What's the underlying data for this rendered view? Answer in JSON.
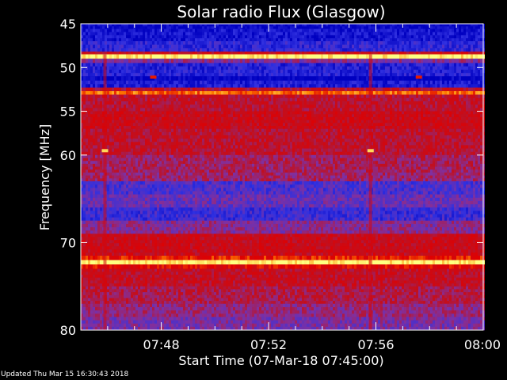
{
  "chart_data": {
    "type": "heatmap",
    "title": "Solar radio Flux (Glasgow)",
    "xlabel": "Start Time (07-Mar-18 07:45:00)",
    "ylabel": "Frequency [MHz]",
    "x_range": [
      "07:45",
      "08:00"
    ],
    "ylim": [
      45,
      80
    ],
    "x_ticks": [
      {
        "label": "07:48",
        "minutes": 3
      },
      {
        "label": "07:52",
        "minutes": 7
      },
      {
        "label": "07:56",
        "minutes": 11
      },
      {
        "label": "08:00",
        "minutes": 15
      }
    ],
    "y_ticks": [
      45,
      50,
      55,
      60,
      70,
      80
    ],
    "colormap": [
      "#0000c0",
      "#3030e0",
      "#8030a0",
      "#c01020",
      "#e00000",
      "#ff8000",
      "#ffff80"
    ],
    "frequency_bands": [
      {
        "f0": 45.0,
        "f1": 45.6,
        "level": 0.02
      },
      {
        "f0": 45.6,
        "f1": 47.0,
        "level": 0.08
      },
      {
        "f0": 47.0,
        "f1": 48.2,
        "level": 0.15
      },
      {
        "f0": 48.2,
        "f1": 48.5,
        "level": 0.55
      },
      {
        "f0": 48.5,
        "f1": 49.0,
        "level": 1.0
      },
      {
        "f0": 49.0,
        "f1": 49.5,
        "level": 0.35
      },
      {
        "f0": 49.5,
        "f1": 51.0,
        "level": 0.12
      },
      {
        "f0": 51.0,
        "f1": 51.5,
        "level": 0.0
      },
      {
        "f0": 51.5,
        "f1": 52.3,
        "level": 0.1
      },
      {
        "f0": 52.3,
        "f1": 52.7,
        "level": 0.5
      },
      {
        "f0": 52.7,
        "f1": 53.1,
        "level": 0.8
      },
      {
        "f0": 53.1,
        "f1": 55.0,
        "level": 0.5
      },
      {
        "f0": 55.0,
        "f1": 57.0,
        "level": 0.55
      },
      {
        "f0": 57.0,
        "f1": 60.0,
        "level": 0.5
      },
      {
        "f0": 60.0,
        "f1": 62.0,
        "level": 0.42
      },
      {
        "f0": 62.0,
        "f1": 63.0,
        "level": 0.4
      },
      {
        "f0": 63.0,
        "f1": 64.5,
        "level": 0.22
      },
      {
        "f0": 64.5,
        "f1": 66.0,
        "level": 0.28
      },
      {
        "f0": 66.0,
        "f1": 67.5,
        "level": 0.18
      },
      {
        "f0": 67.5,
        "f1": 69.0,
        "level": 0.35
      },
      {
        "f0": 69.0,
        "f1": 71.5,
        "level": 0.55
      },
      {
        "f0": 71.5,
        "f1": 72.0,
        "level": 0.7
      },
      {
        "f0": 72.0,
        "f1": 72.5,
        "level": 1.0
      },
      {
        "f0": 72.5,
        "f1": 73.0,
        "level": 0.65
      },
      {
        "f0": 73.0,
        "f1": 75.0,
        "level": 0.52
      },
      {
        "f0": 75.0,
        "f1": 77.0,
        "level": 0.45
      },
      {
        "f0": 77.0,
        "f1": 78.5,
        "level": 0.38
      },
      {
        "f0": 78.5,
        "f1": 80.0,
        "level": 0.32
      }
    ],
    "bursts": [
      {
        "minutes": 0.9,
        "f0": 48.5,
        "f1": 80.0,
        "level": 0.6
      },
      {
        "minutes": 10.8,
        "f0": 48.5,
        "f1": 80.0,
        "level": 0.6
      }
    ],
    "hot_spots": [
      {
        "minutes": 0.9,
        "freq": 59.5,
        "level": 0.95
      },
      {
        "minutes": 10.8,
        "freq": 59.5,
        "level": 0.95
      },
      {
        "minutes": 2.7,
        "freq": 51.1,
        "level": 0.7
      },
      {
        "minutes": 12.6,
        "freq": 51.1,
        "level": 0.7
      }
    ]
  },
  "footer": {
    "updated": "Updated Thu Mar 15 16:30:43 2018"
  }
}
